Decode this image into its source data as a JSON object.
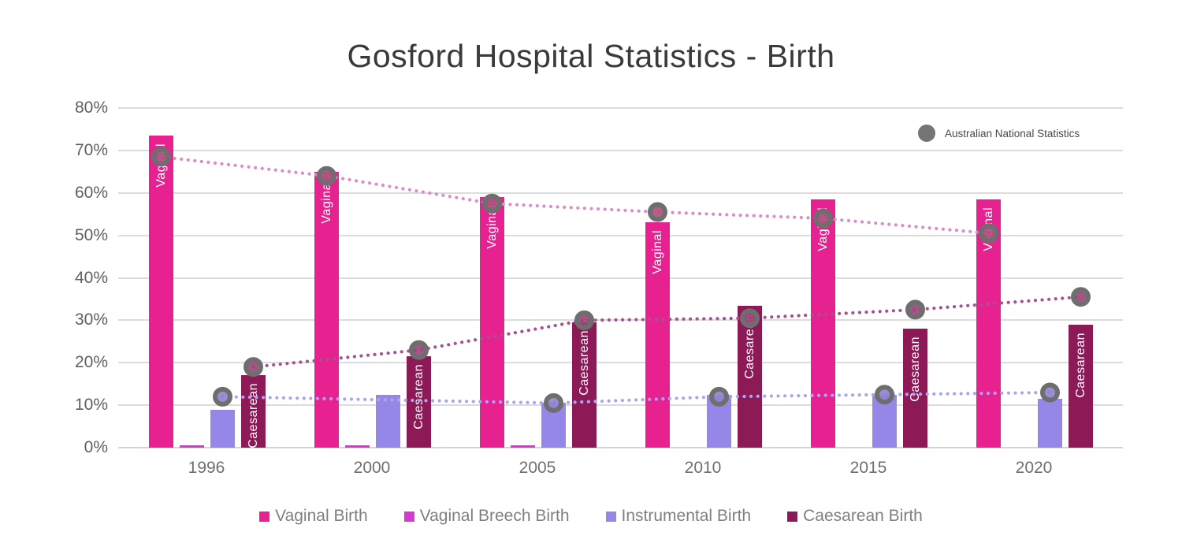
{
  "national_legend_label": "Australian National Statistics",
  "colors": {
    "vaginal": "#E82190",
    "vaginal_breech": "#D53BD0",
    "instrumental": "#9487E8",
    "caesarean": "#8C1A57",
    "national_marker_ring": "#6E6E6E",
    "national_legend_dot": "#757575",
    "gridline": "#DCDCDC",
    "title_text": "#3A3A3A",
    "axis_text": "#606060",
    "legend_text": "#7F7F7F"
  },
  "chart_data": {
    "type": "bar",
    "title": "Gosford Hospital Statistics - Birth",
    "xlabel": "",
    "ylabel": "",
    "ylim": [
      0,
      80
    ],
    "ytick_step": 10,
    "ytick_format": "percent",
    "grid": true,
    "legend_position": "bottom",
    "national_legend_position": "top-right",
    "categories": [
      "1996",
      "2000",
      "2005",
      "2010",
      "2015",
      "2020"
    ],
    "bar_series": [
      {
        "name": "Vaginal Birth",
        "color": "#E82190",
        "bar_label": "Vaginal",
        "values": [
          73.5,
          65,
          59,
          53,
          58.5,
          58.5
        ]
      },
      {
        "name": "Vaginal Breech Birth",
        "color": "#D53BD0",
        "bar_label": "",
        "values": [
          0.5,
          0.5,
          0.5,
          0,
          0,
          0
        ]
      },
      {
        "name": "Instrumental Birth",
        "color": "#9487E8",
        "bar_label": "",
        "values": [
          9,
          12.5,
          10.5,
          12.5,
          12.5,
          11.5
        ]
      },
      {
        "name": "Caesarean Birth",
        "color": "#8C1A57",
        "bar_label": "Caesarean",
        "values": [
          17,
          21.5,
          29.5,
          33.5,
          28,
          29
        ]
      }
    ],
    "national_series": [
      {
        "name": "Australian National Statistics - Vaginal",
        "line_color": "#DC8DC3",
        "marker_fill": "#AB5480",
        "attach_to_series": 0,
        "values": [
          68.5,
          64,
          57.5,
          55.5,
          54,
          50.5
        ]
      },
      {
        "name": "Australian National Statistics - Instrumental",
        "line_color": "#ACA4EF",
        "marker_fill": "#8E84CF",
        "attach_to_series": 2,
        "values": [
          12,
          null,
          10.5,
          12,
          12.5,
          13
        ]
      },
      {
        "name": "Australian National Statistics - Caesarean",
        "line_color": "#A4538E",
        "marker_fill": "#9A4878",
        "attach_to_series": 3,
        "values": [
          19,
          23,
          30,
          30.5,
          32.5,
          35.5
        ]
      }
    ]
  }
}
